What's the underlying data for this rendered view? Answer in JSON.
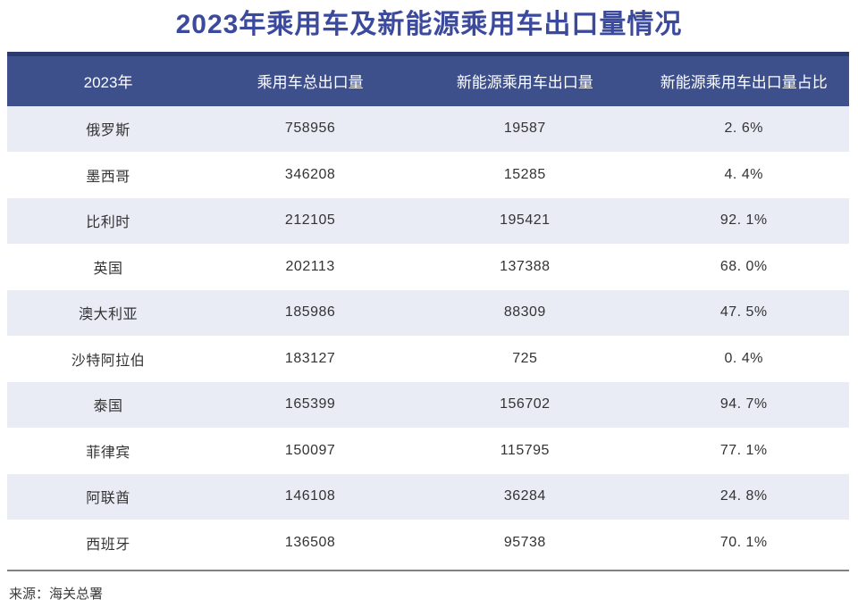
{
  "title": "2023年乘用车及新能源乘用车出口量情况",
  "source": "来源：海关总署",
  "table": {
    "columns": [
      "2023年",
      "乘用车总出口量",
      "新能源乘用车出口量",
      "新能源乘用车出口量占比"
    ],
    "rows": [
      {
        "country": "俄罗斯",
        "total_exports": "758956",
        "nev_exports": "19587",
        "nev_share": "2. 6%"
      },
      {
        "country": "墨西哥",
        "total_exports": "346208",
        "nev_exports": "15285",
        "nev_share": "4. 4%"
      },
      {
        "country": "比利时",
        "total_exports": "212105",
        "nev_exports": "195421",
        "nev_share": "92. 1%"
      },
      {
        "country": "英国",
        "total_exports": "202113",
        "nev_exports": "137388",
        "nev_share": "68. 0%"
      },
      {
        "country": "澳大利亚",
        "total_exports": "185986",
        "nev_exports": "88309",
        "nev_share": "47. 5%"
      },
      {
        "country": "沙特阿拉伯",
        "total_exports": "183127",
        "nev_exports": "725",
        "nev_share": "0. 4%"
      },
      {
        "country": "泰国",
        "total_exports": "165399",
        "nev_exports": "156702",
        "nev_share": "94. 7%"
      },
      {
        "country": "菲律宾",
        "total_exports": "150097",
        "nev_exports": "115795",
        "nev_share": "77. 1%"
      },
      {
        "country": "阿联酋",
        "total_exports": "146108",
        "nev_exports": "36284",
        "nev_share": "24. 8%"
      },
      {
        "country": "西班牙",
        "total_exports": "136508",
        "nev_exports": "95738",
        "nev_share": "70. 1%"
      }
    ]
  },
  "chart_data": {
    "type": "table",
    "title": "2023年乘用车及新能源乘用车出口量情况",
    "columns": [
      "2023年",
      "乘用车总出口量",
      "新能源乘用车出口量",
      "新能源乘用车出口量占比"
    ],
    "rows": [
      [
        "俄罗斯",
        758956,
        19587,
        2.6
      ],
      [
        "墨西哥",
        346208,
        15285,
        4.4
      ],
      [
        "比利时",
        212105,
        195421,
        92.1
      ],
      [
        "英国",
        202113,
        137388,
        68.0
      ],
      [
        "澳大利亚",
        185986,
        88309,
        47.5
      ],
      [
        "沙特阿拉伯",
        183127,
        725,
        0.4
      ],
      [
        "泰国",
        165399,
        156702,
        94.7
      ],
      [
        "菲律宾",
        150097,
        115795,
        77.1
      ],
      [
        "阿联酋",
        146108,
        36284,
        24.8
      ],
      [
        "西班牙",
        136508,
        95738,
        70.1
      ]
    ],
    "share_unit": "%",
    "source": "来源：海关总署"
  },
  "colors": {
    "title_text": "#3b4a9d",
    "header_bg": "#3e508c",
    "header_top_border": "#2b3a6e",
    "header_text": "#ffffff",
    "row_alt_bg": "#e9ecf5",
    "body_text": "#333333",
    "divider": "#808080"
  }
}
